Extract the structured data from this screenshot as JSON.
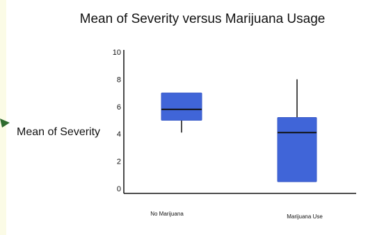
{
  "chart_data": {
    "type": "box",
    "title": "Mean of Severity versus Marijuana Usage",
    "xlabel": "",
    "ylabel": "Mean of Severity",
    "ylim": [
      0,
      10
    ],
    "yticks": [
      "0",
      "2",
      "4",
      "6",
      "8",
      "10"
    ],
    "categories": [
      "No Marijuana",
      "Marijuana Use"
    ],
    "boxes": [
      {
        "category": "No Marijuana",
        "whisker_low": 4.1,
        "q1": 5.0,
        "median": 5.8,
        "q3": 7.0,
        "whisker_high": 7.0
      },
      {
        "category": "Marijuana Use",
        "whisker_low": 0.5,
        "q1": 0.5,
        "median": 4.1,
        "q3": 5.2,
        "whisker_high": 8.0
      }
    ],
    "box_color": "#4065d8",
    "grid": false
  },
  "colors": {
    "box_fill": "#4065d8",
    "box_edge": "#3a5bc8",
    "annotation_arrow": "#2e6b2e"
  }
}
